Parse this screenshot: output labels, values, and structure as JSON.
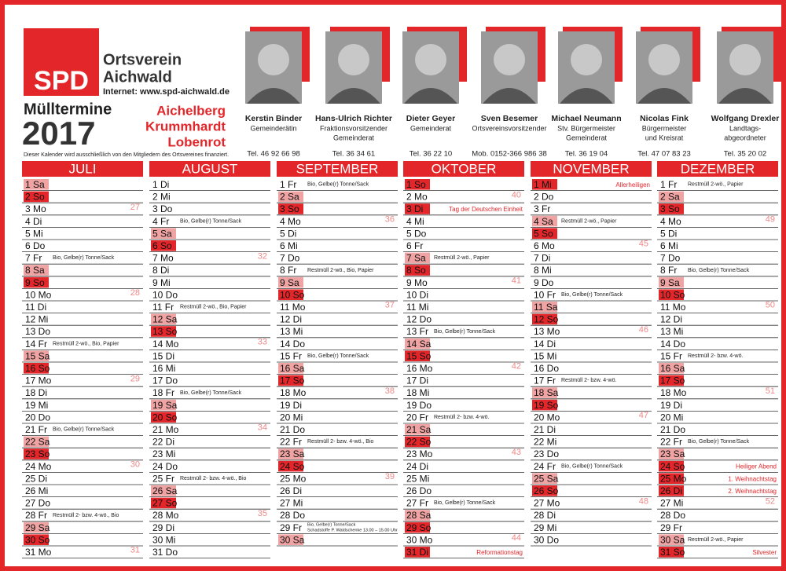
{
  "header": {
    "logo": "SPD",
    "org_line1": "Ortsverein",
    "org_line2": "Aichwald",
    "internet": "Internet: www.spd-aichwald.de",
    "title": "Mülltermine",
    "year": "2017",
    "places": [
      "Aichelberg",
      "Krummhardt",
      "Lobenrot"
    ],
    "note": "Dieser Kalender wird ausschließlich von den Mitgliedern des Ortsvereines finanziert."
  },
  "people": [
    {
      "name": "Kerstin Binder",
      "role": [
        "Gemeinderätin"
      ],
      "tel": "Tel. 46 92 66 98"
    },
    {
      "name": "Hans-Ulrich Richter",
      "role": [
        "Fraktionsvorsitzender",
        "Gemeinderat"
      ],
      "tel": "Tel. 36 34 61"
    },
    {
      "name": "Dieter Geyer",
      "role": [
        "Gemeinderat"
      ],
      "tel": "Tel. 36 22 10"
    },
    {
      "name": "Sven Besemer",
      "role": [
        "Ortsvereinsvorsitzender"
      ],
      "tel": "Mob. 0152-366 986 38"
    },
    {
      "name": "Michael Neumann",
      "role": [
        "Stv. Bürgermeister",
        "Gemeinderat"
      ],
      "tel": "Tel. 36 19 04"
    },
    {
      "name": "Nicolas Fink",
      "role": [
        "Bürgermeister",
        "und Kreisrat"
      ],
      "tel": "Tel. 47 07 83 23"
    },
    {
      "name": "Wolfgang Drexler",
      "role": [
        "Landtags-",
        "abgeordneter"
      ],
      "tel": "Tel. 35 20 02"
    }
  ],
  "months": [
    {
      "name": "JULI",
      "days": [
        "1 Sa",
        "2 So",
        {
          "day": "3 Mo",
          "week": 27
        },
        "4 Di",
        "5 Mi",
        "6 Do",
        {
          "day": "7 Fr",
          "note": [
            "Bio, Gelbe(r) Tonne/Sack"
          ]
        },
        "8 Sa",
        "9 So",
        {
          "day": "10 Mo",
          "week": 28
        },
        "11 Di",
        "12 Mi",
        "13 Do",
        {
          "day": "14 Fr",
          "note": [
            "Restmüll 2-wö., Bio, Papier"
          ]
        },
        "15 Sa",
        "16 So",
        {
          "day": "17 Mo",
          "week": 29
        },
        "18 Di",
        "19 Mi",
        "20 Do",
        {
          "day": "21 Fr",
          "note": [
            "Bio, Gelbe(r) Tonne/Sack"
          ]
        },
        "22 Sa",
        "23 So",
        {
          "day": "24 Mo",
          "week": 30
        },
        "25 Di",
        "26 Mi",
        "27 Do",
        {
          "day": "28 Fr",
          "note": [
            "Restmüll 2- bzw. 4-wö., Bio"
          ]
        },
        "29 Sa",
        "30 So",
        {
          "day": "31 Mo",
          "week": 31
        }
      ]
    },
    {
      "name": "AUGUST",
      "days": [
        "1 Di",
        "2 Mi",
        "3 Do",
        {
          "day": "4 Fr",
          "note": [
            "Bio, Gelbe(r) Tonne/Sack"
          ]
        },
        "5 Sa",
        "6 So",
        {
          "day": "7 Mo",
          "week": 32
        },
        "8 Di",
        "9 Mi",
        "10 Do",
        {
          "day": "11 Fr",
          "note": [
            "Restmüll 2-wö., Bio, Papier"
          ]
        },
        "12 Sa",
        "13 So",
        {
          "day": "14 Mo",
          "week": 33
        },
        "15 Di",
        "16 Mi",
        "17 Do",
        {
          "day": "18 Fr",
          "note": [
            "Bio, Gelbe(r) Tonne/Sack"
          ]
        },
        "19 Sa",
        "20 So",
        {
          "day": "21 Mo",
          "week": 34
        },
        "22 Di",
        "23 Mi",
        "24 Do",
        {
          "day": "25 Fr",
          "note": [
            "Restmüll 2- bzw. 4-wö., Bio"
          ]
        },
        "26 Sa",
        "27 So",
        {
          "day": "28 Mo",
          "week": 35
        },
        "29 Di",
        "30 Mi",
        "31 Do"
      ]
    },
    {
      "name": "SEPTEMBER",
      "days": [
        {
          "day": "1 Fr",
          "note": [
            "Bio, Gelbe(r) Tonne/Sack"
          ]
        },
        "2 Sa",
        "3 So",
        {
          "day": "4 Mo",
          "week": 36
        },
        "5 Di",
        "6 Mi",
        "7 Do",
        {
          "day": "8 Fr",
          "note": [
            "Restmüll 2-wö., Bio, Papier"
          ]
        },
        "9 Sa",
        "10 So",
        {
          "day": "11 Mo",
          "week": 37
        },
        "12 Di",
        "13 Mi",
        "14 Do",
        {
          "day": "15 Fr",
          "note": [
            "Bio, Gelbe(r) Tonne/Sack"
          ]
        },
        "16 Sa",
        "17 So",
        {
          "day": "18 Mo",
          "week": 38
        },
        "19 Di",
        "20 Mi",
        "21 Do",
        {
          "day": "22 Fr",
          "note": [
            "Restmüll 2- bzw. 4-wö., Bio"
          ]
        },
        "23 Sa",
        "24 So",
        {
          "day": "25 Mo",
          "week": 39
        },
        "26 Di",
        "27 Mi",
        "28 Do",
        {
          "day": "29 Fr",
          "note": [
            "Bio, Gelbe(r) Tonne/Sack",
            "Schadstoffe P. Waldschenke 13.00 – 15.00 Uhr"
          ]
        },
        "30 Sa"
      ]
    },
    {
      "name": "OKTOBER",
      "days": [
        "1 So",
        {
          "day": "2 Mo",
          "week": 40
        },
        {
          "day": "3 Di",
          "holiday": "Tag der Deutschen Einheit"
        },
        "4 Mi",
        "5 Do",
        "6 Fr",
        {
          "day": "7 Sa",
          "note": [
            "Restmüll 2-wö., Papier"
          ]
        },
        "8 So",
        {
          "day": "9 Mo",
          "week": 41
        },
        "10 Di",
        "11 Mi",
        "12 Do",
        {
          "day": "13 Fr",
          "note": [
            "Bio, Gelbe(r) Tonne/Sack"
          ]
        },
        "14 Sa",
        "15 So",
        {
          "day": "16 Mo",
          "week": 42
        },
        "17 Di",
        "18 Mi",
        "19 Do",
        {
          "day": "20 Fr",
          "note": [
            "Restmüll 2- bzw. 4-wö."
          ]
        },
        "21 Sa",
        "22 So",
        {
          "day": "23 Mo",
          "week": 43
        },
        "24 Di",
        "25 Mi",
        "26 Do",
        {
          "day": "27 Fr",
          "note": [
            "Bio, Gelbe(r) Tonne/Sack"
          ]
        },
        "28 Sa",
        "29 So",
        {
          "day": "30 Mo",
          "week": 44
        },
        {
          "day": "31 Di",
          "holiday": "Reformationstag"
        }
      ]
    },
    {
      "name": "NOVEMBER",
      "days": [
        {
          "day": "1 Mi",
          "holiday": "Allerheiligen"
        },
        "2 Do",
        "3 Fr",
        {
          "day": "4 Sa",
          "note": [
            "Restmüll 2-wö., Papier"
          ]
        },
        "5 So",
        {
          "day": "6 Mo",
          "week": 45
        },
        "7 Di",
        "8 Mi",
        "9 Do",
        {
          "day": "10 Fr",
          "note": [
            "Bio, Gelbe(r) Tonne/Sack"
          ]
        },
        "11 Sa",
        "12 So",
        {
          "day": "13 Mo",
          "week": 46
        },
        "14 Di",
        "15 Mi",
        "16 Do",
        {
          "day": "17 Fr",
          "note": [
            "Restmüll 2- bzw. 4-wö."
          ]
        },
        "18 Sa",
        "19 So",
        {
          "day": "20 Mo",
          "week": 47
        },
        "21 Di",
        "22 Mi",
        "23 Do",
        {
          "day": "24 Fr",
          "note": [
            "Bio, Gelbe(r) Tonne/Sack"
          ]
        },
        "25 Sa",
        "26 So",
        {
          "day": "27 Mo",
          "week": 48
        },
        "28 Di",
        "29 Mi",
        "30 Do"
      ]
    },
    {
      "name": "DEZEMBER",
      "days": [
        {
          "day": "1 Fr",
          "note": [
            "Restmüll 2-wö., Papier"
          ]
        },
        "2 Sa",
        "3 So",
        {
          "day": "4 Mo",
          "week": 49
        },
        "5 Di",
        "6 Mi",
        "7 Do",
        {
          "day": "8 Fr",
          "note": [
            "Bio, Gelbe(r) Tonne/Sack"
          ]
        },
        "9 Sa",
        "10 So",
        {
          "day": "11 Mo",
          "week": 50
        },
        "12 Di",
        "13 Mi",
        "14 Do",
        {
          "day": "15 Fr",
          "note": [
            "Restmüll 2- bzw. 4-wö."
          ]
        },
        "16 Sa",
        "17 So",
        {
          "day": "18 Mo",
          "week": 51
        },
        "19 Di",
        "20 Mi",
        "21 Do",
        {
          "day": "22 Fr",
          "note": [
            "Bio, Gelbe(r) Tonne/Sack"
          ]
        },
        "23 Sa",
        {
          "day": "24 So",
          "holiday": "Heiliger Abend"
        },
        {
          "day": "25 Mo",
          "holiday": "1. Weihnachtstag"
        },
        {
          "day": "26 Di",
          "holiday": "2. Weihnachtstag"
        },
        {
          "day": "27 Mi",
          "week": 52
        },
        "28 Do",
        "29 Fr",
        {
          "day": "30 Sa",
          "note": [
            "Restmüll 2-wö., Papier"
          ]
        },
        {
          "day": "31 So",
          "holiday": "Silvester"
        }
      ]
    }
  ]
}
